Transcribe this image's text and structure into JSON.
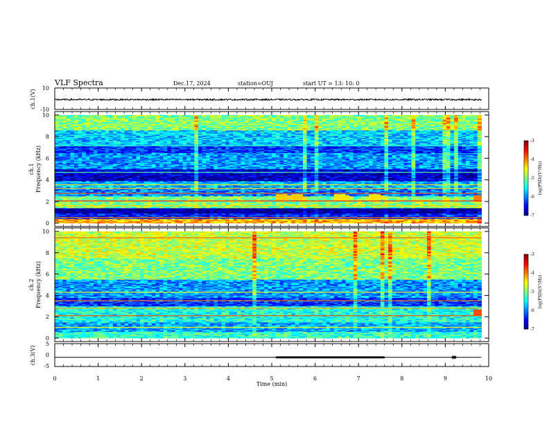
{
  "header": {
    "title": "VLF Spectra",
    "date": "Dec.17, 2024",
    "station": "station=OUJ",
    "start": "start UT =  13: 10: 0"
  },
  "colors": {
    "colormap": [
      "#00007f",
      "#0000ff",
      "#007fff",
      "#00ffff",
      "#7fff7f",
      "#ffff00",
      "#ff7f00",
      "#ff0000",
      "#7f0000"
    ],
    "trace": "#000000"
  },
  "chart_data": [
    {
      "id": "ch1-waveform",
      "type": "line",
      "ylabel": "ch.1(V)",
      "ylim": [
        -10,
        10
      ],
      "yticks": [
        "10",
        "-10"
      ],
      "x": [
        0,
        9.83
      ],
      "baseline": -0.8,
      "noise_amplitude": 0.7
    },
    {
      "id": "ch1-spectrogram",
      "type": "heatmap",
      "ylabel": "ch.1\nFrequency (kHz)",
      "ylabel_lines": [
        "ch.1",
        "Frequency (kHz)"
      ],
      "ylim": [
        0,
        10
      ],
      "yticks": [
        "0",
        "2",
        "4",
        "6",
        "8",
        "10"
      ],
      "colorbar": {
        "label": "log(PSD)(V²/Hz)",
        "range": [
          -7,
          -3
        ],
        "ticks": [
          "-3",
          "-4",
          "-5",
          "-6",
          "-7"
        ]
      },
      "bands": [
        {
          "f": [
            0,
            0.4
          ],
          "level": -4.2
        },
        {
          "f": [
            0.4,
            0.9
          ],
          "level": -6.4
        },
        {
          "f": [
            0.9,
            1.4
          ],
          "level": -6.9
        },
        {
          "f": [
            1.4,
            2.5
          ],
          "level": -5.0
        },
        {
          "f": [
            2.5,
            3.2
          ],
          "level": -6.0
        },
        {
          "f": [
            3.2,
            3.9
          ],
          "level": -5.8
        },
        {
          "f": [
            3.9,
            5.0
          ],
          "level": -6.7
        },
        {
          "f": [
            5.0,
            6.5
          ],
          "level": -5.9
        },
        {
          "f": [
            6.5,
            7.2
          ],
          "level": -6.3
        },
        {
          "f": [
            7.2,
            8.6
          ],
          "level": -5.7
        },
        {
          "f": [
            8.6,
            10.0
          ],
          "level": -5.0
        }
      ],
      "lines": [
        {
          "f": 0.5,
          "level": -4.0
        },
        {
          "f": 1.6,
          "level": -4.3
        },
        {
          "f": 2.05,
          "level": -3.6
        },
        {
          "f": 2.75,
          "level": -3.8
        },
        {
          "f": 3.2,
          "level": -4.3
        },
        {
          "f": 3.55,
          "level": -4.4
        },
        {
          "f": 4.7,
          "level": -5.2
        },
        {
          "f": 7.15,
          "level": -5.3
        },
        {
          "f": 9.1,
          "level": -4.8
        }
      ],
      "bursts": [
        {
          "t": 5.2,
          "f": 2.4,
          "level": -4.3
        },
        {
          "t": 5.55,
          "f": 2.4,
          "level": -4.3
        },
        {
          "t": 6.55,
          "f": 2.4,
          "level": -4.4
        },
        {
          "t": 7.35,
          "f": 2.4,
          "level": -4.4
        },
        {
          "t": 9.75,
          "f": 2.3,
          "level": -4.0
        }
      ]
    },
    {
      "id": "ch2-spectrogram",
      "type": "heatmap",
      "ylabel": "ch.2\nFrequency (kHz)",
      "ylabel_lines": [
        "ch.2",
        "Frequency (kHz)"
      ],
      "ylim": [
        0,
        10
      ],
      "yticks": [
        "0",
        "2",
        "4",
        "6",
        "8",
        "10"
      ],
      "colorbar": {
        "label": "log(PSD)(V²/Hz)",
        "range": [
          -7,
          -3
        ],
        "ticks": [
          "-3",
          "-4",
          "-5",
          "-6",
          "-7"
        ]
      },
      "bands": [
        {
          "f": [
            0,
            0.6
          ],
          "level": -5.3
        },
        {
          "f": [
            0.6,
            1.5
          ],
          "level": -5.8
        },
        {
          "f": [
            1.5,
            3.0
          ],
          "level": -5.4
        },
        {
          "f": [
            3.0,
            3.8
          ],
          "level": -6.3
        },
        {
          "f": [
            3.8,
            5.5
          ],
          "level": -5.9
        },
        {
          "f": [
            5.5,
            7.5
          ],
          "level": -5.0
        },
        {
          "f": [
            7.5,
            10.0
          ],
          "level": -4.7
        }
      ],
      "lines": [
        {
          "f": 1.0,
          "level": -4.5
        },
        {
          "f": 2.1,
          "level": -3.8
        },
        {
          "f": 2.8,
          "level": -4.2
        },
        {
          "f": 3.5,
          "level": -4.0
        },
        {
          "f": 4.3,
          "level": -4.6
        },
        {
          "f": 9.4,
          "level": -3.9
        }
      ],
      "bursts": [
        {
          "t": 9.75,
          "f": 2.4,
          "level": -3.8
        }
      ]
    },
    {
      "id": "ch3-waveform",
      "type": "line",
      "ylabel": "ch.3(V)",
      "ylim": [
        -5,
        5
      ],
      "yticks": [
        "5",
        "0",
        "-5"
      ],
      "xlabel": "Time (min)",
      "xlim": [
        0,
        10
      ],
      "xticks": [
        "0",
        "1",
        "2",
        "3",
        "4",
        "5",
        "6",
        "7",
        "8",
        "9",
        "10"
      ],
      "x": [
        0,
        9.83
      ],
      "baseline": -1.0,
      "segments": [
        {
          "t": [
            5.1,
            7.6
          ],
          "amplitude": 0.4
        },
        {
          "t": [
            9.15,
            9.25
          ],
          "amplitude": 0.3
        }
      ]
    }
  ]
}
